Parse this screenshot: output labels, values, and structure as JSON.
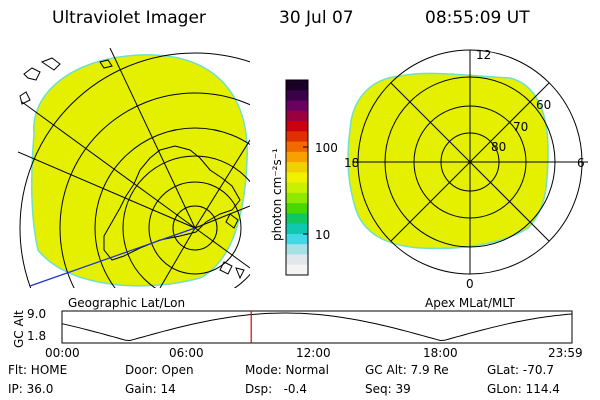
{
  "header": {
    "instrument": "Ultraviolet Imager",
    "date": "30 Jul 07",
    "time": "08:55:09 UT"
  },
  "colorbar": {
    "unit_label": "photon cm⁻²s⁻¹",
    "ticks": [
      "100",
      "10"
    ],
    "colors": [
      "#1a0026",
      "#3a0048",
      "#6a0060",
      "#9a0040",
      "#c80010",
      "#e03000",
      "#f06a00",
      "#f8a000",
      "#f0d000",
      "#f0f000",
      "#c8f000",
      "#90e800",
      "#48d800",
      "#10c860",
      "#10c8b0",
      "#40d8e8",
      "#a8e0e8",
      "#e0e8ec",
      "#f4f4f4"
    ]
  },
  "maps": {
    "fill_color": "#e4f000",
    "edge_color": "#70e0c8",
    "left_caption": "Geographic Lat/Lon",
    "right_caption": "Apex MLat/MLT",
    "mlat_labels": [
      "60",
      "70",
      "80"
    ],
    "mlt_labels": [
      "12",
      "18",
      "6",
      "0"
    ]
  },
  "altitude_plot": {
    "ylabel": "GC Alt",
    "yticks": [
      "9.0",
      "1.8"
    ],
    "xticks": [
      "00:00",
      "06:00",
      "12:00",
      "18:00",
      "23:59"
    ],
    "marker_color": "#e00000",
    "current_fraction": 0.371
  },
  "info": {
    "row1": [
      "Flt: HOME",
      "Door: Open",
      "Mode: Normal",
      "GC Alt: 7.9 Re",
      "GLat: -70.7"
    ],
    "row2": [
      "IP: 36.0",
      "Gain: 14",
      "Dsp:   -0.4",
      "Seq: 39",
      "GLon: 114.4"
    ]
  }
}
